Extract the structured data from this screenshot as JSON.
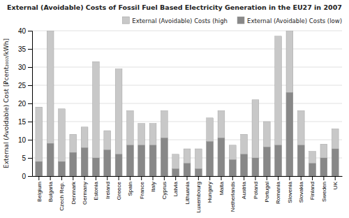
{
  "chart_data": {
    "type": "bar",
    "title": "External (Avoidable) Costs of Fossil Fuel Based Electricity Generation in the EU27 in 2007",
    "ylabel": "External (Avoidable) Cost [⃌cent₂₀₀₇/kWh]",
    "categories": [
      "Belgium",
      "Bulgaria",
      "Czech Rep.",
      "Denmark",
      "Germany",
      "Estonia",
      "Ireland",
      "Greece",
      "Spain",
      "France",
      "Italy",
      "Cyprus",
      "Latvia",
      "Lithuania",
      "Luxembourg",
      "Hungary",
      "Malta",
      "Netherlands",
      "Austria",
      "Poland",
      "Portugal",
      "Romania",
      "Slovenia",
      "Slovakia",
      "Finland",
      "Sweden",
      "UK"
    ],
    "series": [
      {
        "name": "External (Avoidable) Costs (high",
        "color": "#c8c8c8",
        "values": [
          19.0,
          40.0,
          18.5,
          11.5,
          13.5,
          31.5,
          12.5,
          29.5,
          18.0,
          14.5,
          14.5,
          18.0,
          6.0,
          7.5,
          7.5,
          16.0,
          18.0,
          8.5,
          11.5,
          21.0,
          15.0,
          38.5,
          40.0,
          18.0,
          6.8,
          8.8,
          13.0
        ]
      },
      {
        "name": "External (Avoidable) Costs (low)",
        "color": "#888888",
        "values": [
          4.0,
          9.0,
          4.0,
          6.5,
          7.8,
          5.0,
          7.2,
          6.0,
          8.5,
          8.5,
          8.5,
          10.5,
          2.0,
          3.5,
          2.0,
          9.5,
          10.5,
          4.5,
          6.0,
          5.0,
          8.0,
          8.5,
          23.0,
          8.5,
          3.5,
          5.0,
          7.5
        ]
      }
    ],
    "stacked": false,
    "ylim": [
      0,
      40
    ],
    "yticks": [
      0,
      5,
      10,
      15,
      20,
      25,
      30,
      35,
      40
    ],
    "grid": true,
    "legend": "upper right"
  }
}
